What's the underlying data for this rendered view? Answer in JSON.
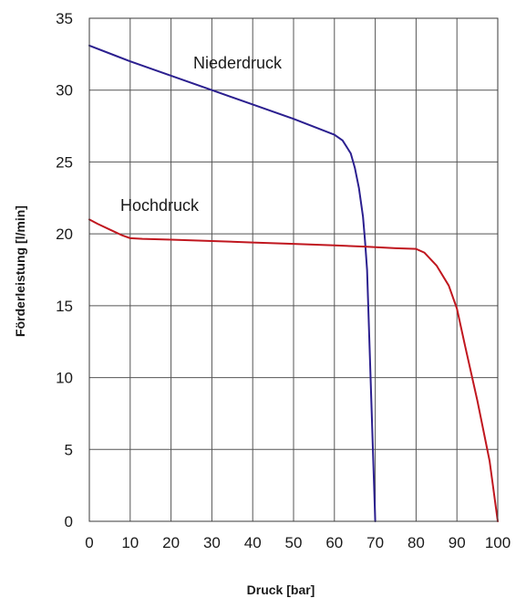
{
  "chart_data": {
    "type": "line",
    "xlabel": "Druck [bar]",
    "ylabel": "Förderleistung [l/min]",
    "xlim": [
      0,
      100
    ],
    "ylim": [
      0,
      35
    ],
    "xticks": [
      0,
      10,
      20,
      30,
      40,
      50,
      60,
      70,
      80,
      90,
      100
    ],
    "yticks": [
      0,
      5,
      10,
      15,
      20,
      25,
      30,
      35
    ],
    "grid": true,
    "series": [
      {
        "name": "Niederdruck",
        "color": "#2b1f8f",
        "x": [
          0,
          10,
          20,
          30,
          40,
          50,
          60,
          62,
          64,
          65,
          66,
          67,
          67.5,
          68,
          70
        ],
        "y": [
          33.1,
          32.0,
          31.0,
          30.0,
          29.0,
          28.0,
          26.9,
          26.5,
          25.6,
          24.6,
          23.2,
          21.2,
          19.5,
          17.5,
          0
        ]
      },
      {
        "name": "Hochdruck",
        "color": "#c0171f",
        "x": [
          0,
          2,
          5,
          8,
          10,
          13,
          20,
          30,
          40,
          50,
          60,
          68,
          75,
          80,
          82,
          85,
          88,
          90,
          92,
          95,
          98,
          100
        ],
        "y": [
          21.0,
          20.7,
          20.3,
          19.9,
          19.7,
          19.65,
          19.6,
          19.5,
          19.4,
          19.3,
          19.2,
          19.1,
          19.0,
          18.95,
          18.7,
          17.8,
          16.4,
          14.8,
          12.2,
          8.4,
          4.2,
          0
        ]
      }
    ]
  }
}
